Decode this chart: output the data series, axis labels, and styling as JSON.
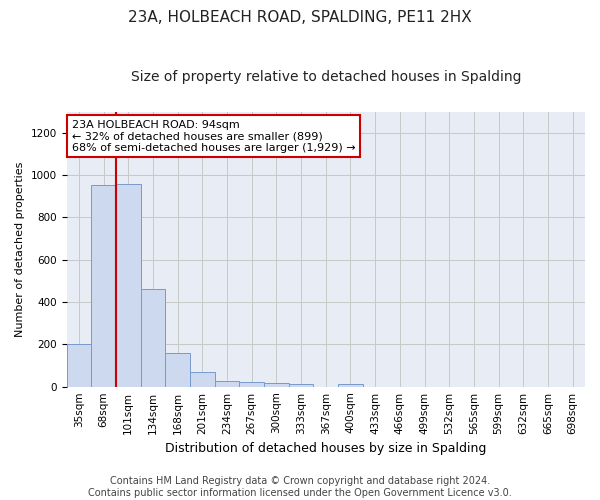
{
  "title": "23A, HOLBEACH ROAD, SPALDING, PE11 2HX",
  "subtitle": "Size of property relative to detached houses in Spalding",
  "xlabel": "Distribution of detached houses by size in Spalding",
  "ylabel": "Number of detached properties",
  "categories": [
    "35sqm",
    "68sqm",
    "101sqm",
    "134sqm",
    "168sqm",
    "201sqm",
    "234sqm",
    "267sqm",
    "300sqm",
    "333sqm",
    "367sqm",
    "400sqm",
    "433sqm",
    "466sqm",
    "499sqm",
    "532sqm",
    "565sqm",
    "599sqm",
    "632sqm",
    "665sqm",
    "698sqm"
  ],
  "values": [
    200,
    955,
    958,
    463,
    160,
    70,
    27,
    20,
    18,
    12,
    0,
    12,
    0,
    0,
    0,
    0,
    0,
    0,
    0,
    0,
    0
  ],
  "bar_color": "#ccd9ee",
  "bar_edge_color": "#7799cc",
  "red_line_index": 1.5,
  "annotation_text": "23A HOLBEACH ROAD: 94sqm\n← 32% of detached houses are smaller (899)\n68% of semi-detached houses are larger (1,929) →",
  "annotation_box_facecolor": "#ffffff",
  "annotation_box_edgecolor": "#cc0000",
  "footer_text": "Contains HM Land Registry data © Crown copyright and database right 2024.\nContains public sector information licensed under the Open Government Licence v3.0.",
  "ylim": [
    0,
    1300
  ],
  "yticks": [
    0,
    200,
    400,
    600,
    800,
    1000,
    1200
  ],
  "grid_color": "#c8c8c8",
  "axes_facecolor": "#e8edf5",
  "fig_facecolor": "#ffffff",
  "title_fontsize": 11,
  "subtitle_fontsize": 10,
  "xlabel_fontsize": 9,
  "ylabel_fontsize": 8,
  "tick_fontsize": 7.5,
  "annotation_fontsize": 8,
  "footer_fontsize": 7
}
